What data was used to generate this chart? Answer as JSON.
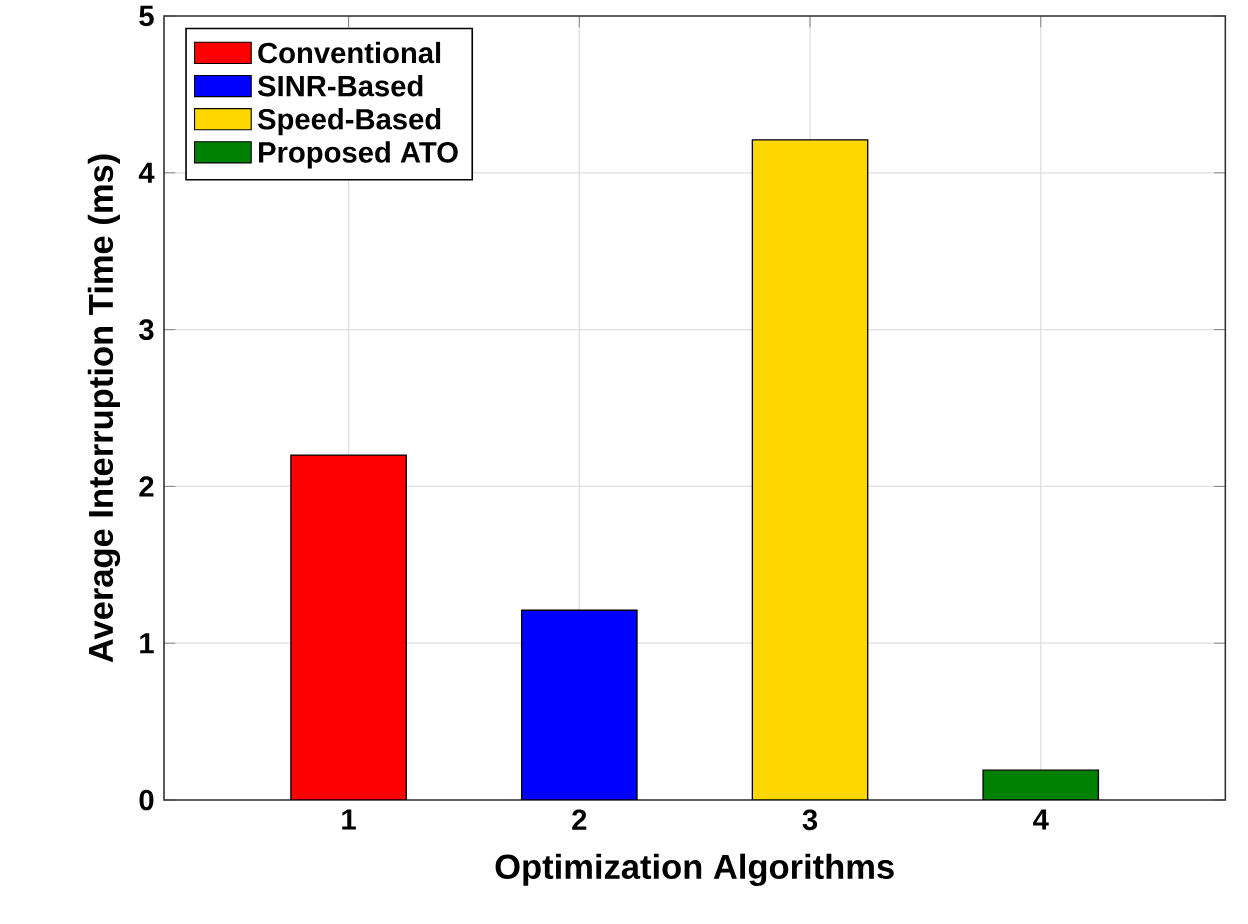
{
  "chart_data": {
    "type": "bar",
    "xlabel": "Optimization Algorithms",
    "ylabel": "Average Interruption Time (ms)",
    "series": [
      {
        "name": "Conventional",
        "color": "#ff0000",
        "x": [
          1
        ],
        "values": [
          2.2
        ]
      },
      {
        "name": "SINR-Based",
        "color": "#0000ff",
        "x": [
          2
        ],
        "values": [
          1.21
        ]
      },
      {
        "name": "Speed-Based",
        "color": "#ffd700",
        "x": [
          3
        ],
        "values": [
          4.21
        ]
      },
      {
        "name": "Proposed ATO",
        "color": "#008000",
        "x": [
          4
        ],
        "values": [
          0.19
        ]
      }
    ],
    "xlim": [
      0.2,
      4.8
    ],
    "xticks": [
      1,
      2,
      3,
      4
    ],
    "ylim": [
      0,
      5
    ],
    "yticks": [
      0,
      1,
      2,
      3,
      4,
      5
    ],
    "grid": true,
    "legend": "top left"
  }
}
